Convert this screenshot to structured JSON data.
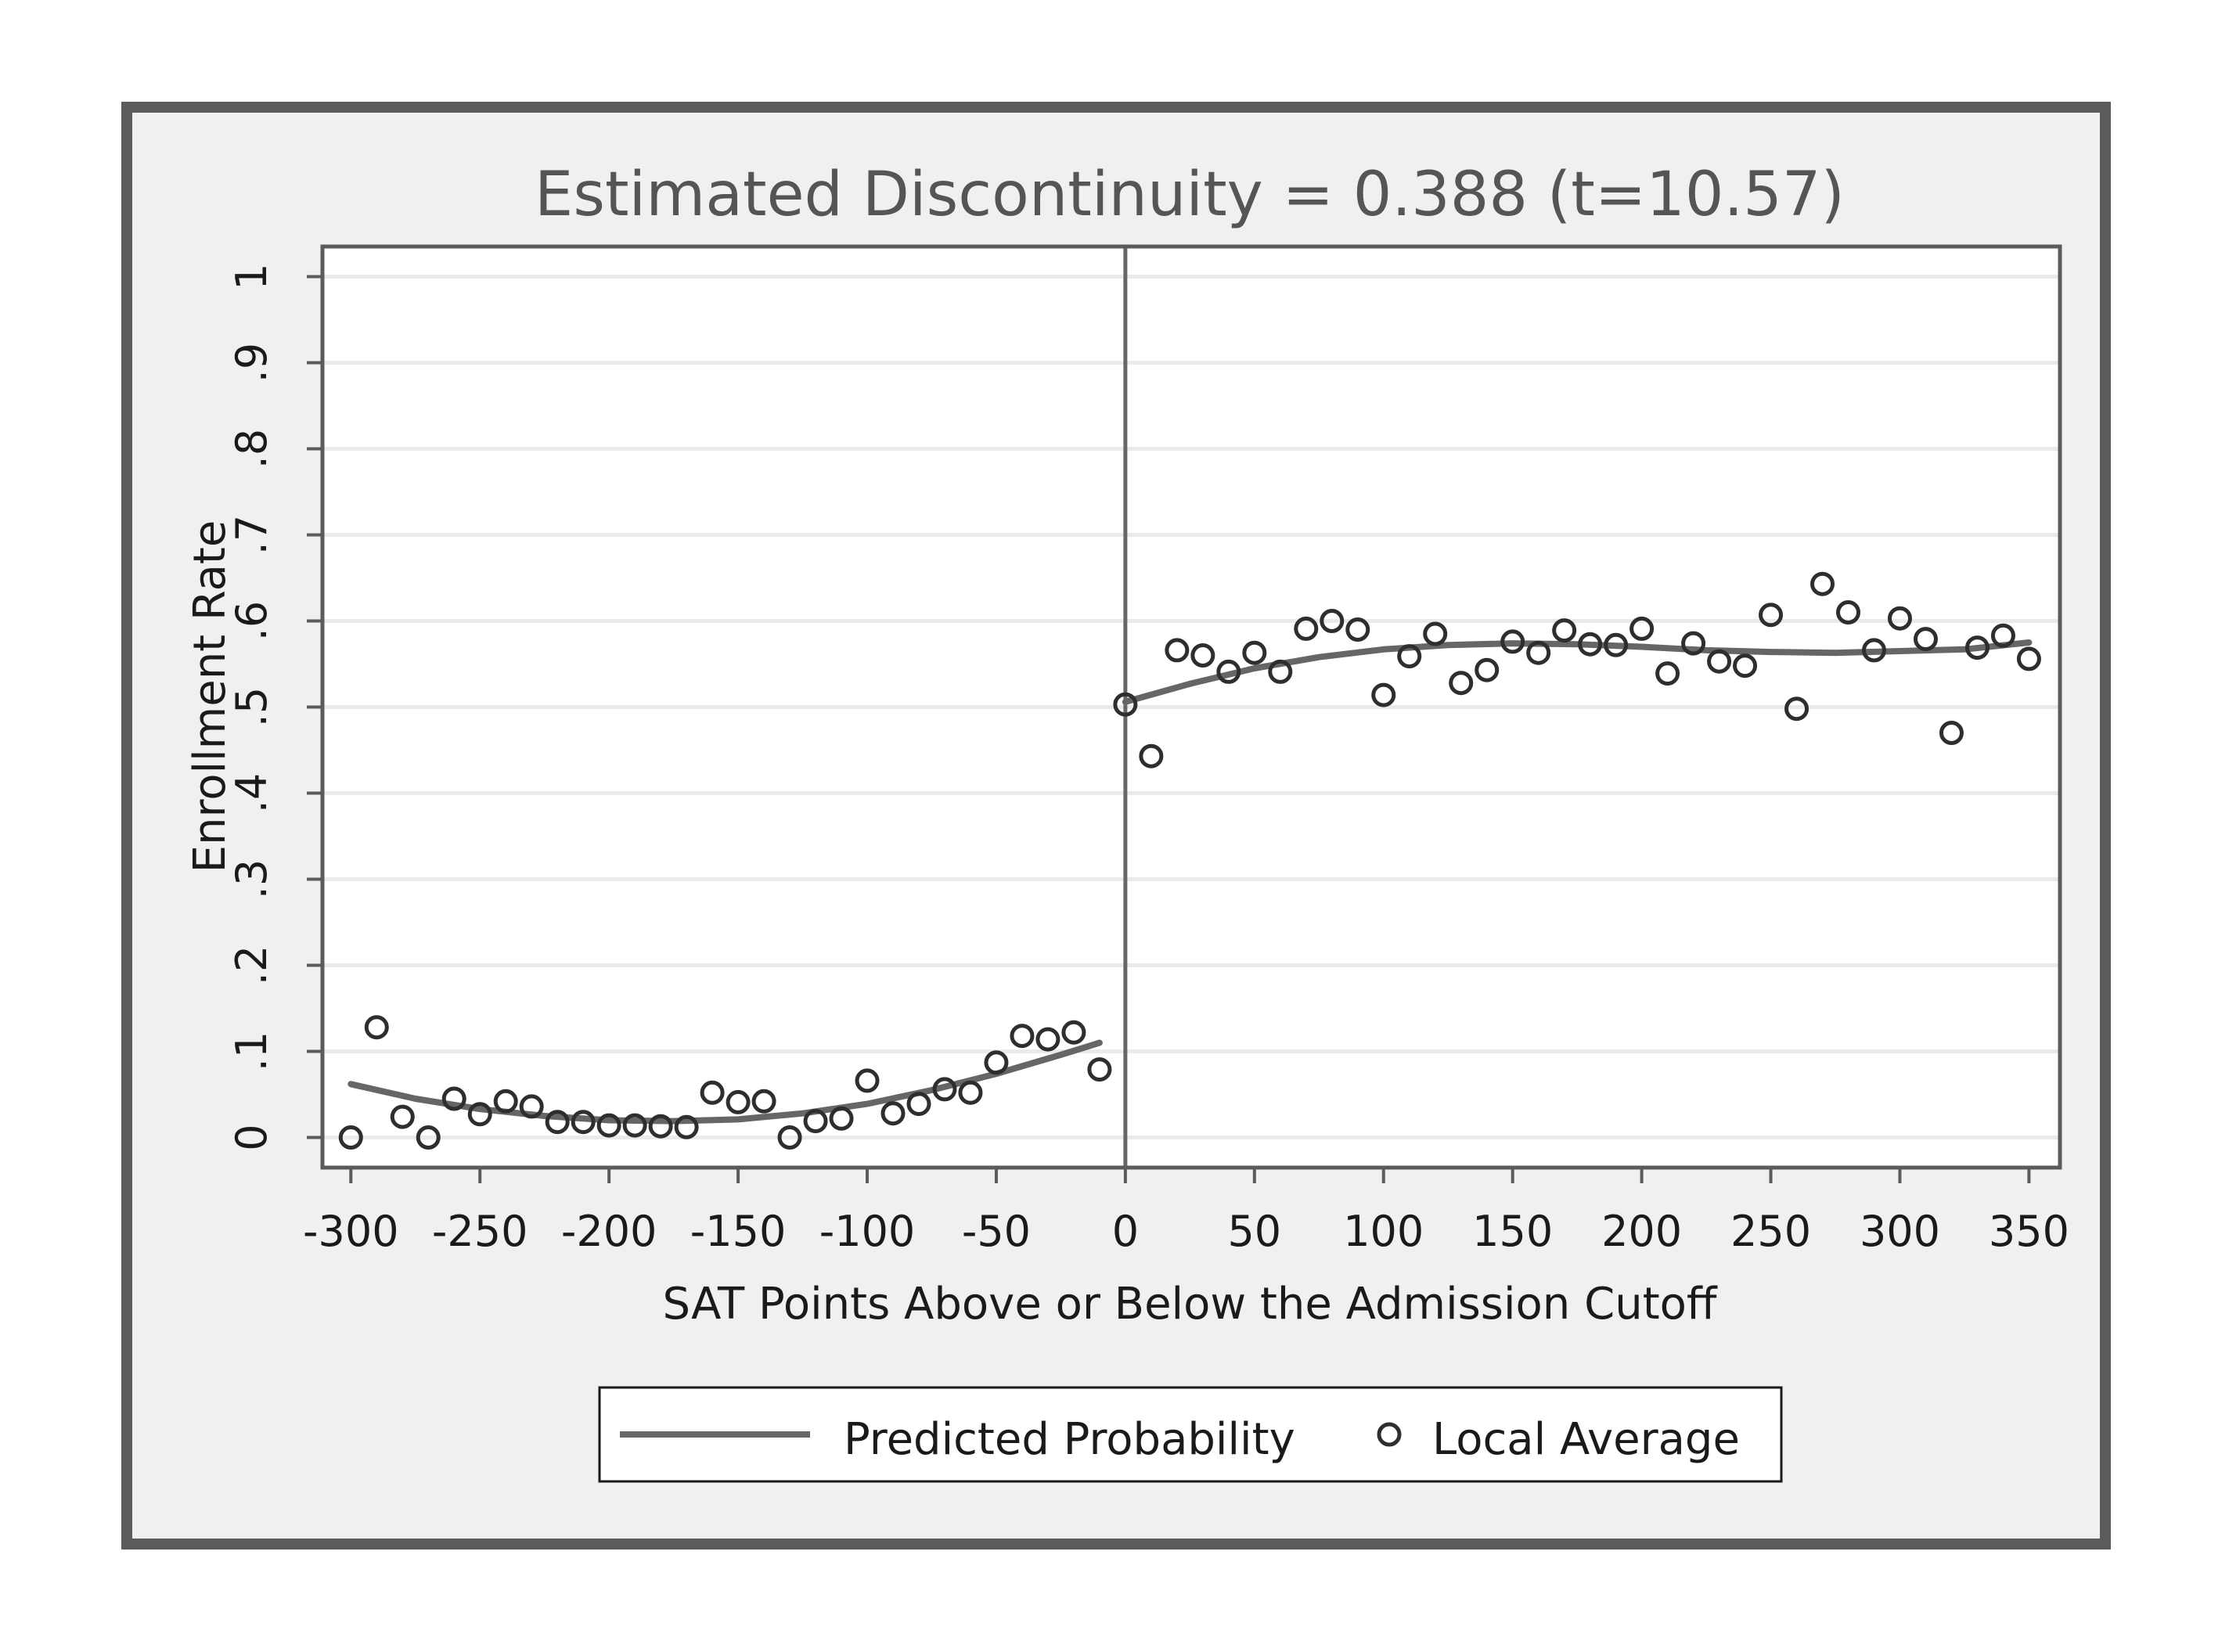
{
  "chart_data": {
    "type": "scatter",
    "title": "Estimated Discontinuity = 0.388 (t=10.57)",
    "xlabel": "SAT Points Above or Below the Admission Cutoff",
    "ylabel": "Enrollment Rate",
    "xlim": [
      -311,
      362
    ],
    "ylim": [
      -0.035,
      1.035
    ],
    "xticks": [
      -300,
      -250,
      -200,
      -150,
      -100,
      -50,
      0,
      50,
      100,
      150,
      200,
      250,
      300,
      350
    ],
    "xtick_labels": [
      "-300",
      "-250",
      "-200",
      "-150",
      "-100",
      "-50",
      "0",
      "50",
      "100",
      "150",
      "200",
      "250",
      "300",
      "350"
    ],
    "yticks": [
      0,
      0.1,
      0.2,
      0.3,
      0.4,
      0.5,
      0.6,
      0.7,
      0.8,
      0.9,
      1
    ],
    "ytick_labels": [
      "0",
      ".1",
      ".2",
      ".3",
      ".4",
      ".5",
      ".6",
      ".7",
      ".8",
      ".9",
      "1"
    ],
    "grid": true,
    "cutoff": 0,
    "legend": {
      "position": "bottom",
      "line_label": "Predicted Probability",
      "marker_label": "Local Average"
    },
    "series": [
      {
        "name": "Local Average",
        "kind": "markers",
        "x": [
          -300,
          -290,
          -280,
          -270,
          -260,
          -250,
          -240,
          -230,
          -220,
          -210,
          -200,
          -190,
          -180,
          -170,
          -160,
          -150,
          -140,
          -130,
          -120,
          -110,
          -100,
          -90,
          -80,
          -70,
          -60,
          -50,
          -40,
          -30,
          -20,
          -10,
          0,
          10,
          20,
          30,
          40,
          50,
          60,
          70,
          80,
          90,
          100,
          110,
          120,
          130,
          140,
          150,
          160,
          170,
          180,
          190,
          200,
          210,
          220,
          230,
          240,
          250,
          260,
          270,
          280,
          290,
          300,
          310,
          320,
          330,
          340,
          350
        ],
        "y": [
          0.0,
          0.128,
          0.024,
          0.0,
          0.045,
          0.027,
          0.042,
          0.036,
          0.018,
          0.018,
          0.014,
          0.014,
          0.013,
          0.012,
          0.052,
          0.041,
          0.042,
          0.0,
          0.019,
          0.022,
          0.066,
          0.028,
          0.039,
          0.056,
          0.052,
          0.087,
          0.118,
          0.114,
          0.122,
          0.079,
          0.503,
          0.443,
          0.566,
          0.56,
          0.541,
          0.563,
          0.541,
          0.591,
          0.6,
          0.59,
          0.514,
          0.559,
          0.585,
          0.528,
          0.543,
          0.576,
          0.563,
          0.589,
          0.573,
          0.572,
          0.591,
          0.539,
          0.574,
          0.553,
          0.548,
          0.607,
          0.498,
          0.643,
          0.61,
          0.566,
          0.603,
          0.579,
          0.47,
          0.569,
          0.583,
          0.556
        ]
      },
      {
        "name": "Predicted Probability",
        "kind": "line",
        "segments": [
          {
            "x": [
              -300,
              -275,
              -250,
              -225,
              -200,
              -175,
              -150,
              -125,
              -100,
              -75,
              -50,
              -25,
              -10
            ],
            "y": [
              0.062,
              0.045,
              0.033,
              0.025,
              0.02,
              0.019,
              0.021,
              0.028,
              0.039,
              0.055,
              0.074,
              0.096,
              0.11
            ]
          },
          {
            "x": [
              0,
              25,
              50,
              75,
              100,
              125,
              150,
              175,
              200,
              225,
              250,
              275,
              300,
              325,
              350
            ],
            "y": [
              0.506,
              0.527,
              0.545,
              0.558,
              0.567,
              0.572,
              0.574,
              0.573,
              0.57,
              0.566,
              0.564,
              0.563,
              0.565,
              0.567,
              0.575
            ]
          }
        ]
      }
    ]
  },
  "colors": {
    "frame": "#5b5b5b",
    "outer_bg": "#f0f0f0",
    "plot_bg": "#ffffff",
    "grid": "#eaeaea",
    "marker": "#2e2e2e",
    "line": "#666666",
    "title": "#555555"
  }
}
